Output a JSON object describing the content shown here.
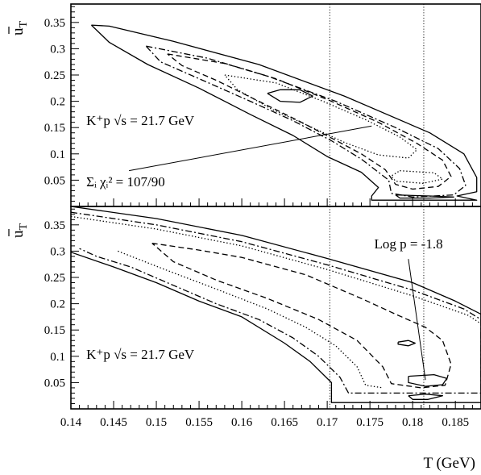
{
  "chart_data": [
    {
      "type": "contour",
      "panel": "top",
      "xlabel": "T (GeV)",
      "ylabel": "u_T",
      "xlim": [
        0.14,
        0.188
      ],
      "ylim": [
        0.0,
        0.385
      ],
      "x_ticks": [
        0.14,
        0.145,
        0.15,
        0.155,
        0.16,
        0.165,
        0.17,
        0.175,
        0.18,
        0.185
      ],
      "y_ticks": [
        0.05,
        0.1,
        0.15,
        0.2,
        0.25,
        0.3,
        0.35
      ],
      "y_tick_labels": [
        "0.05",
        "0.1",
        "0.15",
        "0.2",
        "0.25",
        "0.3",
        "0.35"
      ],
      "vertical_reference_lines": [
        0.1703,
        0.1813
      ],
      "annotations": [
        {
          "text": "K⁺p   √s = 21.7 GeV",
          "at": [
            0.1418,
            0.155
          ]
        },
        {
          "text": "Σᵢ χᵢ² = 107/90",
          "at": [
            0.1418,
            0.038
          ],
          "pointer_from": [
            0.1468,
            0.068
          ],
          "pointer_to": [
            0.1752,
            0.153
          ]
        }
      ],
      "series": [
        {
          "style": "solid",
          "points": [
            [
              0.1424,
              0.345
            ],
            [
              0.1445,
              0.343
            ],
            [
              0.152,
              0.314
            ],
            [
              0.162,
              0.27
            ],
            [
              0.172,
              0.21
            ],
            [
              0.182,
              0.14
            ],
            [
              0.186,
              0.1
            ],
            [
              0.1875,
              0.055
            ],
            [
              0.1875,
              0.028
            ],
            [
              0.1852,
              0.02
            ],
            [
              0.1875,
              0.012
            ],
            [
              0.1752,
              0.012
            ],
            [
              0.1752,
              0.02
            ],
            [
              0.176,
              0.036
            ],
            [
              0.174,
              0.065
            ],
            [
              0.17,
              0.095
            ],
            [
              0.166,
              0.135
            ],
            [
              0.161,
              0.175
            ],
            [
              0.155,
              0.225
            ],
            [
              0.149,
              0.27
            ],
            [
              0.1445,
              0.312
            ],
            [
              0.1424,
              0.345
            ]
          ]
        },
        {
          "style": "dash-dot",
          "points": [
            [
              0.1488,
              0.305
            ],
            [
              0.156,
              0.282
            ],
            [
              0.163,
              0.248
            ],
            [
              0.171,
              0.2
            ],
            [
              0.178,
              0.15
            ],
            [
              0.183,
              0.11
            ],
            [
              0.1855,
              0.072
            ],
            [
              0.1862,
              0.04
            ],
            [
              0.1848,
              0.022
            ],
            [
              0.18,
              0.018
            ],
            [
              0.1775,
              0.025
            ],
            [
              0.1772,
              0.05
            ],
            [
              0.174,
              0.09
            ],
            [
              0.1705,
              0.125
            ],
            [
              0.166,
              0.163
            ],
            [
              0.161,
              0.2
            ],
            [
              0.155,
              0.243
            ],
            [
              0.1505,
              0.275
            ],
            [
              0.1488,
              0.305
            ]
          ]
        },
        {
          "style": "dashed",
          "points": [
            [
              0.1513,
              0.29
            ],
            [
              0.158,
              0.272
            ],
            [
              0.164,
              0.243
            ],
            [
              0.1705,
              0.2
            ],
            [
              0.176,
              0.16
            ],
            [
              0.1805,
              0.12
            ],
            [
              0.1835,
              0.088
            ],
            [
              0.1845,
              0.057
            ],
            [
              0.183,
              0.038
            ],
            [
              0.18,
              0.033
            ],
            [
              0.178,
              0.042
            ],
            [
              0.1768,
              0.07
            ],
            [
              0.174,
              0.1
            ],
            [
              0.1705,
              0.13
            ],
            [
              0.167,
              0.16
            ],
            [
              0.162,
              0.2
            ],
            [
              0.157,
              0.24
            ],
            [
              0.153,
              0.268
            ],
            [
              0.1513,
              0.29
            ]
          ]
        },
        {
          "style": "dotted",
          "points": [
            [
              0.158,
              0.25
            ],
            [
              0.164,
              0.235
            ],
            [
              0.1695,
              0.2
            ],
            [
              0.1745,
              0.165
            ],
            [
              0.1785,
              0.132
            ],
            [
              0.1805,
              0.108
            ],
            [
              0.1795,
              0.092
            ],
            [
              0.176,
              0.098
            ],
            [
              0.172,
              0.122
            ],
            [
              0.168,
              0.152
            ],
            [
              0.1635,
              0.185
            ],
            [
              0.1595,
              0.222
            ],
            [
              0.158,
              0.25
            ]
          ]
        },
        {
          "style": "dotted",
          "points": [
            [
              0.1785,
              0.068
            ],
            [
              0.1825,
              0.064
            ],
            [
              0.1835,
              0.052
            ],
            [
              0.1812,
              0.044
            ],
            [
              0.178,
              0.048
            ],
            [
              0.1775,
              0.058
            ],
            [
              0.1785,
              0.068
            ]
          ]
        },
        {
          "style": "solid",
          "points": [
            [
              0.163,
              0.215
            ],
            [
              0.1645,
              0.222
            ],
            [
              0.1668,
              0.222
            ],
            [
              0.1683,
              0.21
            ],
            [
              0.1668,
              0.198
            ],
            [
              0.1645,
              0.2
            ],
            [
              0.163,
              0.215
            ]
          ]
        },
        {
          "style": "solid",
          "points": [
            [
              0.178,
              0.022
            ],
            [
              0.182,
              0.02
            ],
            [
              0.1848,
              0.018
            ],
            [
              0.182,
              0.016
            ],
            [
              0.1785,
              0.016
            ],
            [
              0.178,
              0.022
            ]
          ]
        }
      ]
    },
    {
      "type": "contour",
      "panel": "bottom",
      "xlabel": "T (GeV)",
      "ylabel": "u_T",
      "xlim": [
        0.14,
        0.188
      ],
      "ylim": [
        0.0,
        0.385
      ],
      "x_ticks": [
        0.14,
        0.145,
        0.15,
        0.155,
        0.16,
        0.165,
        0.17,
        0.175,
        0.18,
        0.185
      ],
      "x_tick_labels": [
        "0.14",
        "0.145",
        "0.15",
        "0.155",
        "0.16",
        "0.165",
        "0.17",
        "0.175",
        "0.18",
        "0.185"
      ],
      "y_ticks": [
        0.05,
        0.1,
        0.15,
        0.2,
        0.25,
        0.3,
        0.35
      ],
      "y_tick_labels": [
        "0.05",
        "0.1",
        "0.15",
        "0.2",
        "0.25",
        "0.3",
        "0.35"
      ],
      "vertical_reference_lines": [
        0.1703,
        0.1813
      ],
      "annotations": [
        {
          "text": "K⁺p   √s = 21.7 GeV",
          "at": [
            0.1418,
            0.095
          ]
        },
        {
          "text": "Log p = -1.8",
          "at": [
            0.1755,
            0.305
          ],
          "pointer_from": [
            0.1795,
            0.285
          ],
          "pointer_to": [
            0.1815,
            0.055
          ]
        }
      ],
      "series": [
        {
          "style": "solid",
          "points": [
            [
              0.14,
              0.385
            ],
            [
              0.15,
              0.362
            ],
            [
              0.16,
              0.33
            ],
            [
              0.17,
              0.286
            ],
            [
              0.18,
              0.24
            ],
            [
              0.185,
              0.205
            ],
            [
              0.188,
              0.18
            ],
            [
              0.188,
              0.012
            ],
            [
              0.1705,
              0.012
            ],
            [
              0.1705,
              0.05
            ],
            [
              0.168,
              0.09
            ],
            [
              0.165,
              0.125
            ],
            [
              0.16,
              0.175
            ],
            [
              0.155,
              0.205
            ],
            [
              0.15,
              0.24
            ],
            [
              0.145,
              0.27
            ],
            [
              0.14,
              0.298
            ]
          ]
        },
        {
          "style": "dash-dot",
          "points": [
            [
              0.14,
              0.374
            ],
            [
              0.15,
              0.35
            ],
            [
              0.16,
              0.318
            ],
            [
              0.17,
              0.274
            ],
            [
              0.18,
              0.226
            ],
            [
              0.186,
              0.19
            ],
            [
              0.188,
              0.17
            ],
            [
              0.188,
              0.03
            ],
            [
              0.183,
              0.03
            ],
            [
              0.1725,
              0.03
            ],
            [
              0.1715,
              0.06
            ],
            [
              0.169,
              0.1
            ],
            [
              0.166,
              0.135
            ],
            [
              0.162,
              0.17
            ],
            [
              0.157,
              0.2
            ],
            [
              0.152,
              0.235
            ],
            [
              0.147,
              0.27
            ],
            [
              0.143,
              0.29
            ],
            [
              0.141,
              0.305
            ]
          ]
        },
        {
          "style": "dotted",
          "points": [
            [
              0.14,
              0.366
            ],
            [
              0.15,
              0.342
            ],
            [
              0.16,
              0.31
            ],
            [
              0.17,
              0.265
            ],
            [
              0.18,
              0.215
            ],
            [
              0.1865,
              0.178
            ],
            [
              0.188,
              0.162
            ]
          ]
        },
        {
          "style": "dotted",
          "points": [
            [
              0.1455,
              0.3
            ],
            [
              0.151,
              0.265
            ],
            [
              0.157,
              0.228
            ],
            [
              0.163,
              0.19
            ],
            [
              0.1675,
              0.155
            ],
            [
              0.171,
              0.12
            ],
            [
              0.1735,
              0.08
            ],
            [
              0.1745,
              0.045
            ],
            [
              0.1765,
              0.04
            ]
          ]
        },
        {
          "style": "dashed",
          "points": [
            [
              0.1495,
              0.315
            ],
            [
              0.155,
              0.302
            ],
            [
              0.16,
              0.288
            ],
            [
              0.1675,
              0.255
            ],
            [
              0.174,
              0.21
            ],
            [
              0.178,
              0.18
            ],
            [
              0.1815,
              0.155
            ],
            [
              0.1835,
              0.13
            ],
            [
              0.1845,
              0.085
            ],
            [
              0.1838,
              0.045
            ],
            [
              0.181,
              0.04
            ],
            [
              0.1775,
              0.048
            ],
            [
              0.1765,
              0.08
            ],
            [
              0.1735,
              0.13
            ],
            [
              0.169,
              0.17
            ],
            [
              0.163,
              0.21
            ],
            [
              0.157,
              0.245
            ],
            [
              0.152,
              0.28
            ],
            [
              0.1495,
              0.315
            ]
          ]
        },
        {
          "style": "solid",
          "points": [
            [
              0.1783,
              0.127
            ],
            [
              0.1795,
              0.13
            ],
            [
              0.1803,
              0.125
            ],
            [
              0.1795,
              0.12
            ],
            [
              0.1783,
              0.123
            ],
            [
              0.1783,
              0.127
            ]
          ]
        },
        {
          "style": "solid",
          "points": [
            [
              0.1795,
              0.062
            ],
            [
              0.1825,
              0.065
            ],
            [
              0.184,
              0.058
            ],
            [
              0.1835,
              0.046
            ],
            [
              0.1815,
              0.043
            ],
            [
              0.1795,
              0.05
            ],
            [
              0.1795,
              0.062
            ]
          ]
        },
        {
          "style": "solid",
          "points": [
            [
              0.1795,
              0.025
            ],
            [
              0.1815,
              0.028
            ],
            [
              0.1835,
              0.025
            ],
            [
              0.1818,
              0.018
            ],
            [
              0.18,
              0.018
            ],
            [
              0.1795,
              0.025
            ]
          ]
        }
      ]
    }
  ]
}
